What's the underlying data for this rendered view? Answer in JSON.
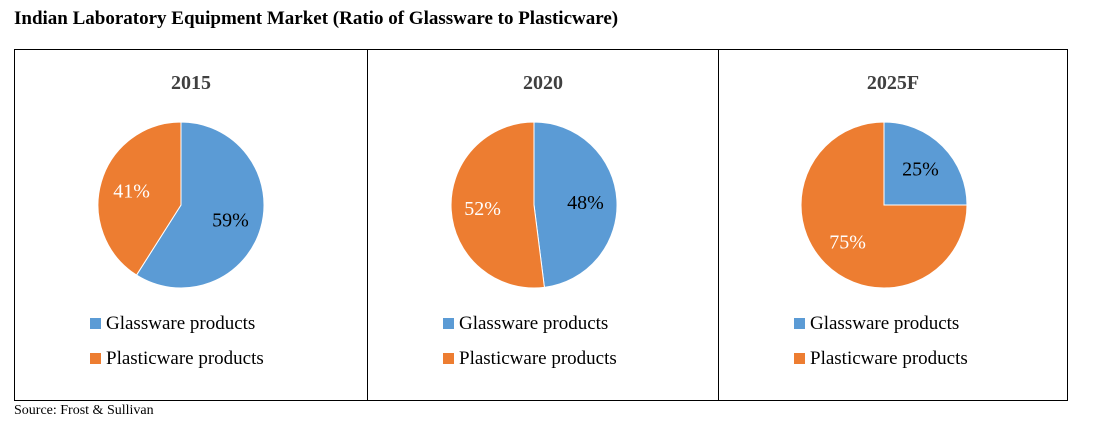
{
  "title": "Indian Laboratory Equipment Market (Ratio of Glassware to Plasticware)",
  "source": "Source: Frost & Sullivan",
  "colors": {
    "glassware": "#5B9BD5",
    "plasticware": "#ED7D31"
  },
  "chart_data": [
    {
      "type": "pie",
      "title": "2015",
      "categories": [
        "Glassware products",
        "Plasticware products"
      ],
      "values": [
        59,
        41
      ],
      "labels": [
        "59%",
        "41%"
      ],
      "legend": "bottom"
    },
    {
      "type": "pie",
      "title": "2020",
      "categories": [
        "Glassware products",
        "Plasticware products"
      ],
      "values": [
        48,
        52
      ],
      "labels": [
        "48%",
        "52%"
      ],
      "legend": "bottom"
    },
    {
      "type": "pie",
      "title": "2025F",
      "categories": [
        "Glassware products",
        "Plasticware products"
      ],
      "values": [
        25,
        75
      ],
      "labels": [
        "25%",
        "75%"
      ],
      "legend": "bottom"
    }
  ]
}
